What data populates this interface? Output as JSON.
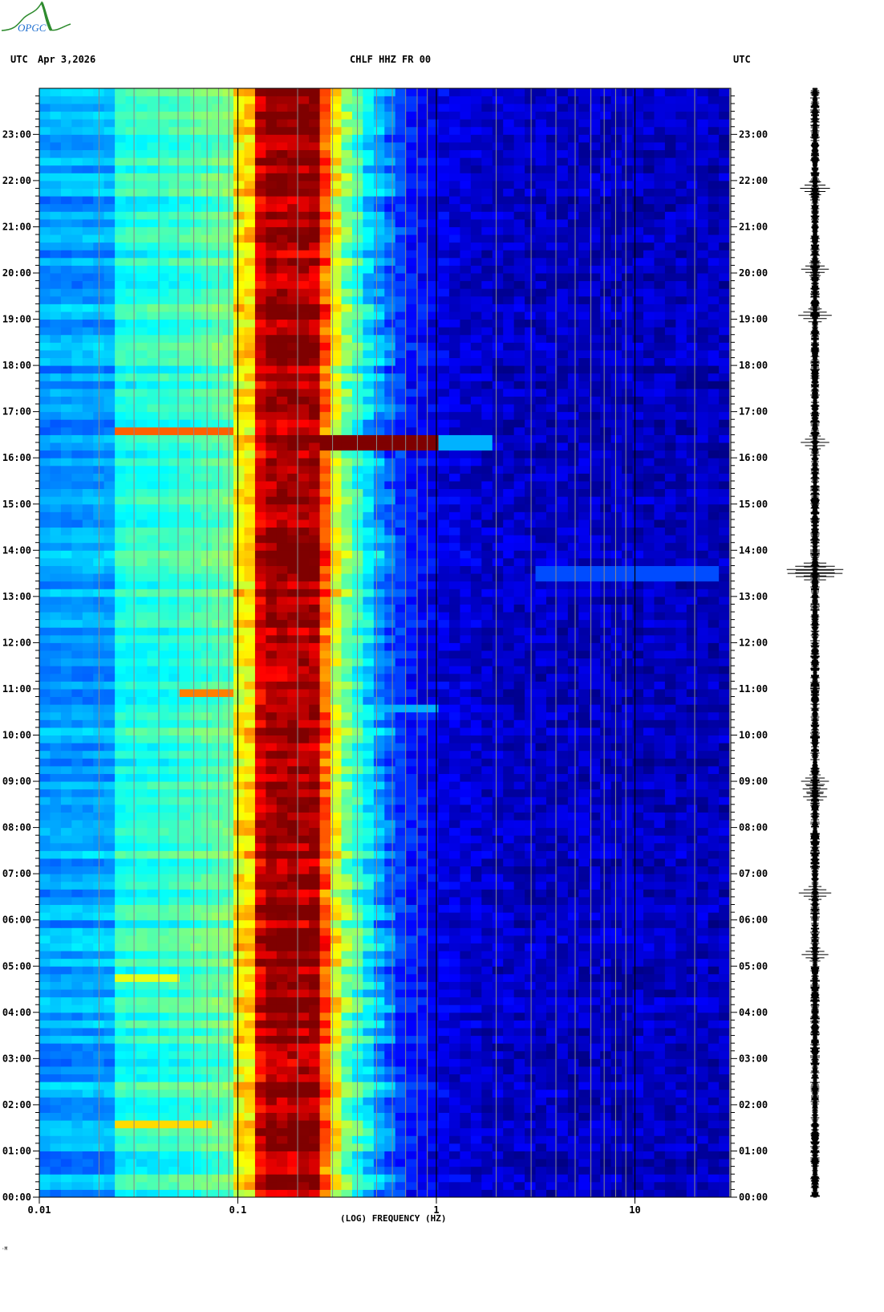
{
  "logo": {
    "text": "OPGC",
    "colors": {
      "curve": "#2e8b2e",
      "text": "#1e6fd0"
    }
  },
  "header": {
    "left_tz": "UTC",
    "date": "Apr 3,2026",
    "station": "CHLF HHZ FR 00",
    "right_tz": "UTC"
  },
  "footer_mark": "·M",
  "chart_data": {
    "type": "heatmap",
    "title": "CHLF HHZ FR 00",
    "xlabel": "(LOG) FREQUENCY (HZ)",
    "ylabel": "",
    "x_scale": "log",
    "xlim": [
      0.01,
      30
    ],
    "x_ticks": [
      {
        "value": 0.01,
        "label": "0.01"
      },
      {
        "value": 0.1,
        "label": "0.1"
      },
      {
        "value": 1,
        "label": "1"
      },
      {
        "value": 10,
        "label": "10"
      }
    ],
    "ylim_hours_utc": [
      0,
      24
    ],
    "y_ticks_left": [
      "00:00",
      "01:00",
      "02:00",
      "03:00",
      "04:00",
      "05:00",
      "06:00",
      "07:00",
      "08:00",
      "09:00",
      "10:00",
      "11:00",
      "12:00",
      "13:00",
      "14:00",
      "15:00",
      "16:00",
      "17:00",
      "18:00",
      "19:00",
      "20:00",
      "21:00",
      "22:00",
      "23:00"
    ],
    "y_ticks_right": [
      "00:00",
      "01:00",
      "02:00",
      "03:00",
      "04:00",
      "05:00",
      "06:00",
      "07:00",
      "08:00",
      "09:00",
      "10:00",
      "11:00",
      "12:00",
      "13:00",
      "14:00",
      "15:00",
      "16:00",
      "17:00",
      "18:00",
      "19:00",
      "20:00",
      "21:00",
      "22:00",
      "23:00"
    ],
    "grid": "vertical lines at 1-9 x each decade",
    "colormap": "jet (relative power, blue low to dark red high)",
    "mean_relative_power_profile": [
      [
        0.01,
        0.28
      ],
      [
        0.024,
        0.29
      ],
      [
        0.025,
        0.4
      ],
      [
        0.05,
        0.42
      ],
      [
        0.07,
        0.45
      ],
      [
        0.1,
        0.48
      ],
      [
        0.101,
        0.64
      ],
      [
        0.12,
        0.66
      ],
      [
        0.121,
        0.88
      ],
      [
        0.145,
        0.97
      ],
      [
        0.25,
        0.97
      ],
      [
        0.27,
        0.82
      ],
      [
        0.3,
        0.64
      ],
      [
        0.35,
        0.5
      ],
      [
        0.45,
        0.36
      ],
      [
        0.55,
        0.25
      ],
      [
        0.7,
        0.16
      ],
      [
        1,
        0.1
      ],
      [
        2,
        0.07
      ],
      [
        30,
        0.06
      ]
    ],
    "events": [
      {
        "time_utc": "16:20",
        "freq_range_hz": [
          0.25,
          2.0
        ],
        "relative_power": 1.0
      },
      {
        "time_utc": "16:35",
        "freq_range_hz": [
          0.024,
          0.1
        ],
        "relative_power": 0.78
      },
      {
        "time_utc": "01:35",
        "freq_range_hz": [
          0.024,
          0.07
        ],
        "relative_power": 0.66
      },
      {
        "time_utc": "04:45",
        "freq_range_hz": [
          0.024,
          0.05
        ],
        "relative_power": 0.6
      },
      {
        "time_utc": "10:55",
        "freq_range_hz": [
          0.05,
          0.1
        ],
        "relative_power": 0.75
      },
      {
        "time_utc": "10:35",
        "freq_range_hz": [
          0.5,
          1.0
        ],
        "relative_power": 0.3
      },
      {
        "time_utc": "13:30",
        "freq_range_hz": [
          3,
          25
        ],
        "relative_power": 0.2
      }
    ],
    "trace_spikes_utc": [
      "21:50",
      "16:20",
      "13:35",
      "13:30",
      "09:00",
      "08:50",
      "08:40",
      "06:35",
      "05:15",
      "19:05",
      "20:05"
    ]
  }
}
